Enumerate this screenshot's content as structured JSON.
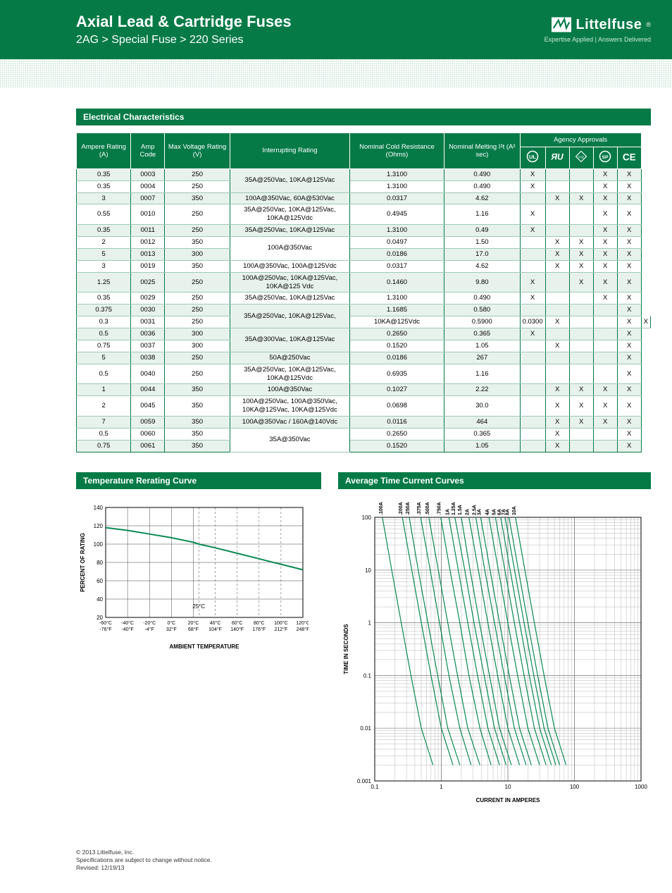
{
  "header": {
    "title": "Axial Lead & Cartridge Fuses",
    "breadcrumb": "2AG > Special Fuse > 220 Series",
    "brand": "Littelfuse",
    "tagline": "Expertise Applied | Answers Delivered",
    "reg": "®"
  },
  "section_table": "Electrical Characteristics",
  "table": {
    "headers": {
      "ampere": "Ampere Rating (A)",
      "ampcode": "Amp Code",
      "maxv": "Max Voltage Rating (V)",
      "interrupt": "Interrupting Rating",
      "cold": "Nominal Cold Resistance (Ohms)",
      "melt": "Nominal Melting I²t (A² sec)",
      "agency": "Agency Approvals"
    },
    "rows": [
      {
        "a": "0.35",
        "code": "0003",
        "v": "250",
        "ir": "35A@250Vac, 10KA@125Vac",
        "ir_span": 2,
        "cr": "1.3100",
        "mi": "0.490",
        "ag": [
          "X",
          "",
          "",
          "X",
          "X"
        ],
        "shade": 1
      },
      {
        "a": "0.35",
        "code": "0004",
        "v": "250",
        "ir": null,
        "cr": "1.3100",
        "mi": "0.490",
        "ag": [
          "X",
          "",
          "",
          "X",
          "X"
        ],
        "shade": 0
      },
      {
        "a": "3",
        "code": "0007",
        "v": "350",
        "ir": "100A@350Vac, 60A@530Vac",
        "cr": "0.0317",
        "mi": "4.62",
        "ag": [
          "",
          "X",
          "X",
          "X",
          "X"
        ],
        "shade": 1
      },
      {
        "a": "0.55",
        "code": "0010",
        "v": "250",
        "ir": "35A@250Vac, 10KA@125Vac, 10KA@125Vdc",
        "cr": "0.4945",
        "mi": "1.16",
        "ag": [
          "X",
          "",
          "",
          "X",
          "X"
        ],
        "shade": 0
      },
      {
        "a": "0.35",
        "code": "0011",
        "v": "250",
        "ir": "35A@250Vac, 10KA@125Vac",
        "cr": "1.3100",
        "mi": "0.49",
        "ag": [
          "X",
          "",
          "",
          "X",
          "X"
        ],
        "shade": 1
      },
      {
        "a": "2",
        "code": "0012",
        "v": "350",
        "ir": "100A@350Vac",
        "ir_span": 2,
        "cr": "0.0497",
        "mi": "1.50",
        "ag": [
          "",
          "X",
          "X",
          "X",
          "X"
        ],
        "shade": 0
      },
      {
        "a": "5",
        "code": "0013",
        "v": "300",
        "ir": null,
        "cr": "0.0186",
        "mi": "17.0",
        "ag": [
          "",
          "X",
          "X",
          "X",
          "X"
        ],
        "shade": 1
      },
      {
        "a": "3",
        "code": "0019",
        "v": "350",
        "ir": "100A@350Vac, 100A@125Vdc",
        "cr": "0.0317",
        "mi": "4.62",
        "ag": [
          "",
          "X",
          "X",
          "X",
          "X"
        ],
        "shade": 0
      },
      {
        "a": "1.25",
        "code": "0025",
        "v": "250",
        "ir": "100A@250Vac, 10KA@125Vac, 10KA@125 Vdc",
        "cr": "0.1460",
        "mi": "9.80",
        "ag": [
          "X",
          "",
          "X",
          "X",
          "X"
        ],
        "shade": 1
      },
      {
        "a": "0.35",
        "code": "0029",
        "v": "250",
        "ir": "35A@250Vac, 10KA@125Vac",
        "cr": "1.3100",
        "mi": "0.490",
        "ag": [
          "X",
          "",
          "",
          "X",
          "X"
        ],
        "shade": 0
      },
      {
        "a": "0.375",
        "code": "0030",
        "v": "250",
        "ir": "35A@250Vac, 10KA@125Vac,",
        "ir_span": 2,
        "cr": "1.1685",
        "mi": "0.580",
        "ag": [
          "",
          "",
          "",
          "",
          "X"
        ],
        "shade": 1
      },
      {
        "a": "0.3",
        "code": "0031",
        "v": "250",
        "ir": "10KA@125Vdc",
        "cr": "0.5900",
        "mi": "0.0300",
        "ag": [
          "X",
          "",
          "",
          "X",
          "X"
        ],
        "shade": 0,
        "ir_continue": 1
      },
      {
        "a": "0.5",
        "code": "0036",
        "v": "300",
        "ir": "35A@300Vac, 10KA@125Vac",
        "ir_span": 2,
        "cr": "0.2650",
        "mi": "0.365",
        "ag": [
          "X",
          "",
          "",
          "",
          "X"
        ],
        "shade": 1
      },
      {
        "a": "0.75",
        "code": "0037",
        "v": "300",
        "ir": null,
        "cr": "0.1520",
        "mi": "1.05",
        "ag": [
          "",
          "X",
          "",
          "",
          "X"
        ],
        "shade": 0
      },
      {
        "a": "5",
        "code": "0038",
        "v": "250",
        "ir": "50A@250Vac",
        "cr": "0.0186",
        "mi": "267",
        "ag": [
          "",
          "",
          "",
          "",
          "X"
        ],
        "shade": 1
      },
      {
        "a": "0.5",
        "code": "0040",
        "v": "250",
        "ir": "35A@250Vac, 10KA@125Vac, 10KA@125Vdc",
        "cr": "0.6935",
        "mi": "1.16",
        "ag": [
          "",
          "",
          "",
          "",
          "X"
        ],
        "shade": 0
      },
      {
        "a": "1",
        "code": "0044",
        "v": "350",
        "ir": "100A@350Vac",
        "cr": "0.1027",
        "mi": "2.22",
        "ag": [
          "",
          "X",
          "X",
          "X",
          "X"
        ],
        "shade": 1
      },
      {
        "a": "2",
        "code": "0045",
        "v": "350",
        "ir": "100A@250Vac, 100A@350Vac, 10KA@125Vac, 10KA@125Vdc",
        "cr": "0.0698",
        "mi": "30.0",
        "ag": [
          "",
          "X",
          "X",
          "X",
          "X"
        ],
        "shade": 0
      },
      {
        "a": "7",
        "code": "0059",
        "v": "350",
        "ir": "100A@350Vac / 160A@140Vdc",
        "cr": "0.0116",
        "mi": "464",
        "ag": [
          "",
          "X",
          "X",
          "X",
          "X"
        ],
        "shade": 1
      },
      {
        "a": "0.5",
        "code": "0060",
        "v": "350",
        "ir": "35A@350Vac",
        "ir_span": 2,
        "cr": "0.2650",
        "mi": "0.365",
        "ag": [
          "",
          "X",
          "",
          "",
          "X"
        ],
        "shade": 0
      },
      {
        "a": "0.75",
        "code": "0061",
        "v": "350",
        "ir": null,
        "cr": "0.1520",
        "mi": "1.05",
        "ag": [
          "",
          "X",
          "",
          "",
          "X"
        ],
        "shade": 1
      }
    ]
  },
  "chart_temp": {
    "title": "Temperature Rerating Curve",
    "ylabel": "PERCENT OF RATING",
    "xlabel": "AMBIENT TEMPERATURE",
    "yticks": [
      20,
      40,
      60,
      80,
      100,
      120,
      140
    ],
    "xticks_c": [
      "-60°C",
      "-40°C",
      "-20°C",
      "0°C",
      "20°C",
      "40°C",
      "60°C",
      "80°C",
      "100°C",
      "120°C"
    ],
    "xticks_f": [
      "-76°F",
      "-40°F",
      "-4°F",
      "32°F",
      "68°F",
      "104°F",
      "140°F",
      "176°F",
      "212°F",
      "248°F"
    ],
    "ref_label": "25°C",
    "line_color": "#0a8a52",
    "grid_color": "#444444",
    "line": [
      [
        -60,
        118
      ],
      [
        -40,
        115
      ],
      [
        -20,
        111
      ],
      [
        0,
        107
      ],
      [
        20,
        102
      ],
      [
        25,
        100
      ],
      [
        40,
        96
      ],
      [
        60,
        90
      ],
      [
        80,
        84
      ],
      [
        100,
        78
      ],
      [
        120,
        72
      ]
    ]
  },
  "chart_time": {
    "title": "Average Time Current Curves",
    "ylabel": "TIME IN SECONDS",
    "xlabel": "CURRENT IN AMPERES",
    "xticks": [
      "0.1",
      "1",
      "10",
      "100",
      "1000"
    ],
    "yticks": [
      "0.001",
      "0.01",
      "0.1",
      "1",
      "10",
      "100"
    ],
    "line_color": "#0a8a52",
    "grid_color": "#888888",
    "series_labels": [
      ".100A",
      ".200A",
      ".250A",
      ".375A",
      ".500A",
      ".750A",
      "1A",
      "1.25A",
      "1.5A",
      "2A",
      "2.5A",
      "3A",
      "4A",
      "5A",
      "6A",
      "7A",
      "8A",
      "10A"
    ],
    "x_range_log": [
      -1,
      3
    ],
    "y_range_log": [
      -3,
      2
    ],
    "curves": [
      [
        [
          0.13,
          100
        ],
        [
          0.18,
          10
        ],
        [
          0.25,
          1
        ],
        [
          0.35,
          0.1
        ],
        [
          0.5,
          0.01
        ],
        [
          0.75,
          0.002
        ]
      ],
      [
        [
          0.26,
          100
        ],
        [
          0.36,
          10
        ],
        [
          0.5,
          1
        ],
        [
          0.7,
          0.1
        ],
        [
          1.0,
          0.01
        ],
        [
          1.5,
          0.002
        ]
      ],
      [
        [
          0.33,
          100
        ],
        [
          0.45,
          10
        ],
        [
          0.63,
          1
        ],
        [
          0.88,
          0.1
        ],
        [
          1.25,
          0.01
        ],
        [
          1.9,
          0.002
        ]
      ],
      [
        [
          0.49,
          100
        ],
        [
          0.68,
          10
        ],
        [
          0.94,
          1
        ],
        [
          1.3,
          0.1
        ],
        [
          1.9,
          0.01
        ],
        [
          2.8,
          0.002
        ]
      ],
      [
        [
          0.65,
          100
        ],
        [
          0.9,
          10
        ],
        [
          1.25,
          1
        ],
        [
          1.75,
          0.1
        ],
        [
          2.5,
          0.01
        ],
        [
          3.8,
          0.002
        ]
      ],
      [
        [
          0.98,
          100
        ],
        [
          1.35,
          10
        ],
        [
          1.9,
          1
        ],
        [
          2.6,
          0.1
        ],
        [
          3.8,
          0.01
        ],
        [
          5.6,
          0.002
        ]
      ],
      [
        [
          1.3,
          100
        ],
        [
          1.8,
          10
        ],
        [
          2.5,
          1
        ],
        [
          3.5,
          0.1
        ],
        [
          5.0,
          0.01
        ],
        [
          7.5,
          0.002
        ]
      ],
      [
        [
          1.6,
          100
        ],
        [
          2.25,
          10
        ],
        [
          3.1,
          1
        ],
        [
          4.4,
          0.1
        ],
        [
          6.3,
          0.01
        ],
        [
          9.4,
          0.002
        ]
      ],
      [
        [
          2.0,
          100
        ],
        [
          2.7,
          10
        ],
        [
          3.75,
          1
        ],
        [
          5.3,
          0.1
        ],
        [
          7.5,
          0.01
        ],
        [
          11.3,
          0.002
        ]
      ],
      [
        [
          2.6,
          100
        ],
        [
          3.6,
          10
        ],
        [
          5.0,
          1
        ],
        [
          7.0,
          0.1
        ],
        [
          10.0,
          0.01
        ],
        [
          15.0,
          0.002
        ]
      ],
      [
        [
          3.3,
          100
        ],
        [
          4.5,
          10
        ],
        [
          6.3,
          1
        ],
        [
          8.8,
          0.1
        ],
        [
          12.5,
          0.01
        ],
        [
          18.8,
          0.002
        ]
      ],
      [
        [
          3.9,
          100
        ],
        [
          5.4,
          10
        ],
        [
          7.5,
          1
        ],
        [
          10.5,
          0.1
        ],
        [
          15.0,
          0.01
        ],
        [
          22.5,
          0.002
        ]
      ],
      [
        [
          5.2,
          100
        ],
        [
          7.2,
          10
        ],
        [
          10.0,
          1
        ],
        [
          14.0,
          0.1
        ],
        [
          20.0,
          0.01
        ],
        [
          30.0,
          0.002
        ]
      ],
      [
        [
          6.5,
          100
        ],
        [
          9.0,
          10
        ],
        [
          12.5,
          1
        ],
        [
          17.5,
          0.1
        ],
        [
          25.0,
          0.01
        ],
        [
          37.5,
          0.002
        ]
      ],
      [
        [
          7.8,
          100
        ],
        [
          10.8,
          10
        ],
        [
          15.0,
          1
        ],
        [
          21.0,
          0.1
        ],
        [
          30.0,
          0.01
        ],
        [
          45.0,
          0.002
        ]
      ],
      [
        [
          9.1,
          100
        ],
        [
          12.6,
          10
        ],
        [
          17.5,
          1
        ],
        [
          24.5,
          0.1
        ],
        [
          35.0,
          0.01
        ],
        [
          52.5,
          0.002
        ]
      ],
      [
        [
          10.4,
          100
        ],
        [
          14.4,
          10
        ],
        [
          20.0,
          1
        ],
        [
          28.0,
          0.1
        ],
        [
          40.0,
          0.01
        ],
        [
          60.0,
          0.002
        ]
      ],
      [
        [
          13.0,
          100
        ],
        [
          18.0,
          10
        ],
        [
          25.0,
          1
        ],
        [
          35.0,
          0.1
        ],
        [
          50.0,
          0.01
        ],
        [
          75.0,
          0.002
        ]
      ]
    ]
  },
  "footer": {
    "copyright": "© 2013 Littelfuse, Inc.",
    "notice": "Specifications are subject to change without notice.",
    "revised": "Revised: 12/19/13"
  }
}
